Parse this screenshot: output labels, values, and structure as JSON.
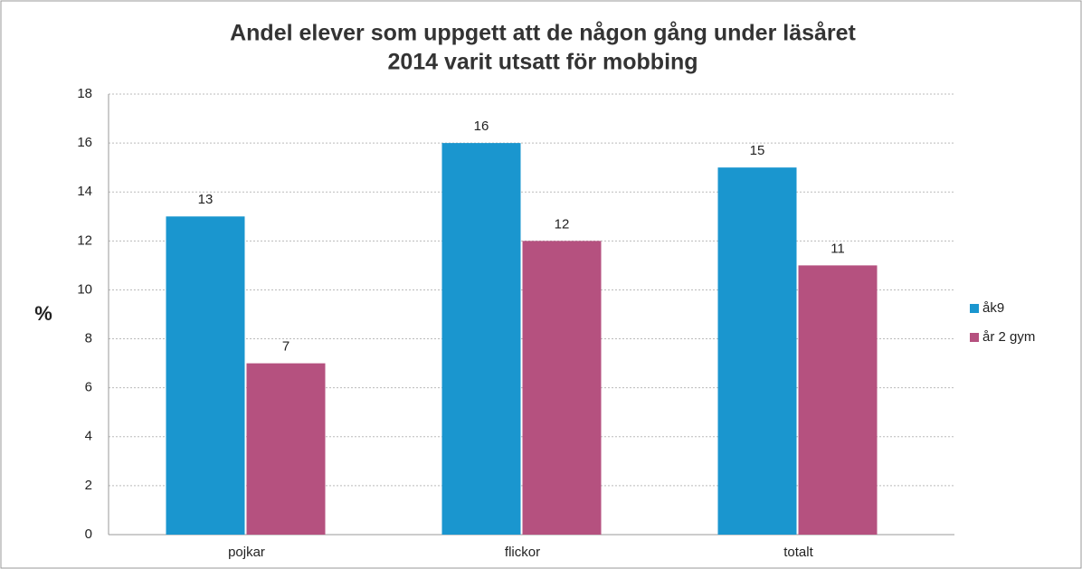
{
  "chart_data": {
    "type": "bar",
    "title": [
      "Andel elever som uppgett att de någon gång under läsåret",
      "2014  varit utsatt för mobbing"
    ],
    "y_label": "%",
    "categories": [
      "pojkar",
      "flickor",
      "totalt"
    ],
    "series": [
      {
        "name": "åk9",
        "color": "#1a96cf",
        "values": [
          13,
          16,
          15
        ]
      },
      {
        "name": "år 2 gym",
        "color": "#b5517f",
        "values": [
          7,
          12,
          11
        ]
      }
    ],
    "ylim": [
      0,
      18
    ],
    "yticks": [
      0,
      2,
      4,
      6,
      8,
      10,
      12,
      14,
      16,
      18
    ],
    "grid": true,
    "legend": "right"
  }
}
